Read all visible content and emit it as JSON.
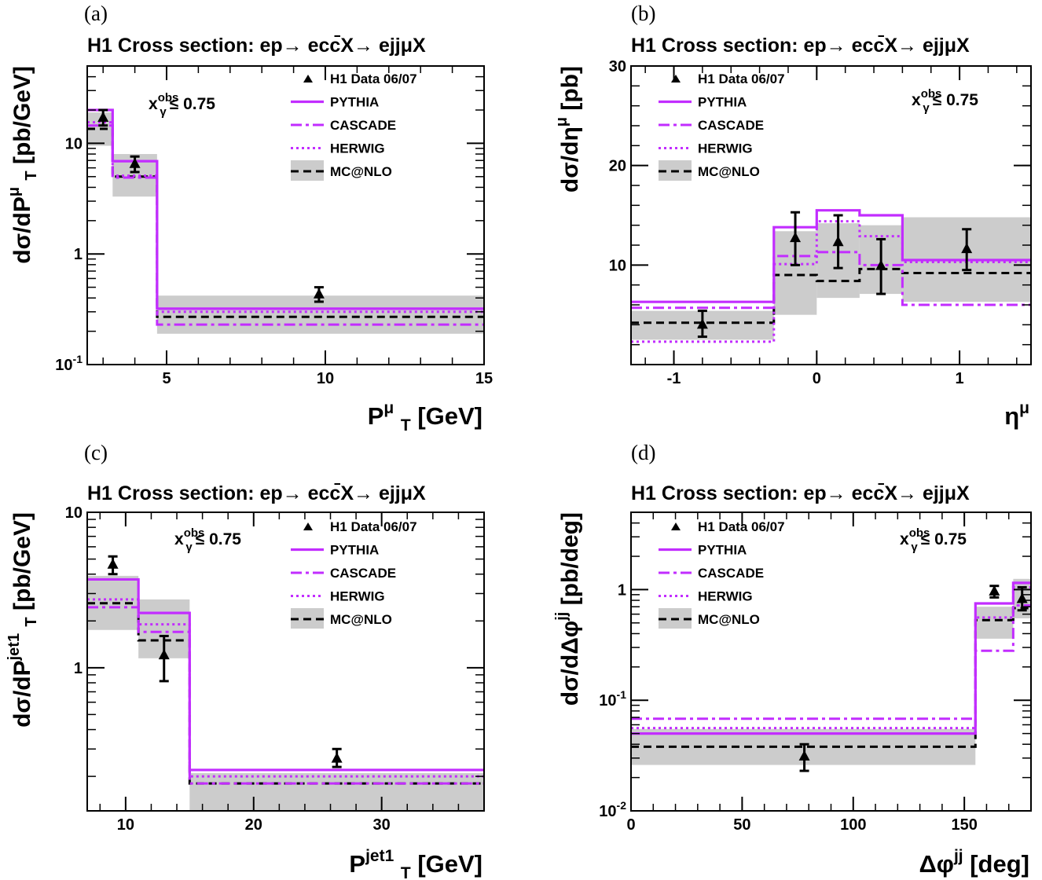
{
  "chart_data": [
    {
      "panel_label": "(a)",
      "type": "line",
      "title": "H1 Cross section: ep→ ecc̄X→ ejjμX",
      "xlabel": "P_T^μ [GeV]",
      "ylabel": "dσ/dP_T^μ [pb/GeV]",
      "xlim": [
        2.5,
        15
      ],
      "ylim": [
        0.1,
        50
      ],
      "ylog": true,
      "x_ticks": [
        "5",
        "10",
        "15"
      ],
      "y_ticks": [
        "10^-1",
        "1",
        "10"
      ],
      "cut_label": "xγ^obs ≤ 0.75",
      "legend_position": "top-right",
      "legend": [
        "H1 Data 06/07",
        "PYTHIA",
        "CASCADE",
        "HERWIG",
        "MC@NLO"
      ],
      "bin_edges": [
        2.5,
        3.3,
        4.7,
        15
      ],
      "data": {
        "x": [
          3.0,
          4.0,
          9.8
        ],
        "y": [
          17,
          6.5,
          0.43
        ],
        "err_up": [
          20,
          7.6,
          0.5
        ],
        "err_down": [
          14.5,
          5.5,
          0.37
        ]
      },
      "series": [
        {
          "name": "PYTHIA",
          "values": [
            20,
            6.9,
            0.32
          ]
        },
        {
          "name": "CASCADE",
          "values": [
            14.5,
            4.9,
            0.23
          ]
        },
        {
          "name": "HERWIG",
          "values": [
            15.5,
            5.1,
            0.3
          ]
        },
        {
          "name": "MC@NLO",
          "values": [
            13.5,
            5.0,
            0.27
          ]
        }
      ],
      "mcnlo_band": {
        "low": [
          9.5,
          3.3,
          0.19
        ],
        "high": [
          19,
          8.0,
          0.42
        ]
      }
    },
    {
      "panel_label": "(b)",
      "type": "line",
      "title": "H1 Cross section: ep→ ecc̄X→ ejjμX",
      "xlabel": "η^μ",
      "ylabel": "dσ/dη^μ [pb]",
      "xlim": [
        -1.3,
        1.5
      ],
      "ylim": [
        0,
        30
      ],
      "ylog": false,
      "x_ticks": [
        "-1",
        "0",
        "1"
      ],
      "y_ticks": [
        "10",
        "20",
        "30"
      ],
      "cut_label": "xγ^obs ≤ 0.75",
      "legend_position": "top-right",
      "legend": [
        "H1 Data 06/07",
        "PYTHIA",
        "CASCADE",
        "HERWIG",
        "MC@NLO"
      ],
      "bin_edges": [
        -1.3,
        -0.3,
        0,
        0.3,
        0.6,
        1.5
      ],
      "data": {
        "x": [
          -0.8,
          -0.15,
          0.15,
          0.45,
          1.05
        ],
        "y": [
          4.0,
          12.7,
          12.3,
          9.9,
          11.6
        ],
        "err_up": [
          5.4,
          15.3,
          15.0,
          12.6,
          13.6
        ],
        "err_down": [
          2.8,
          10.0,
          9.7,
          7.1,
          9.5
        ]
      },
      "series": [
        {
          "name": "PYTHIA",
          "values": [
            6.3,
            13.8,
            15.5,
            15.0,
            10.5
          ]
        },
        {
          "name": "CASCADE",
          "values": [
            5.7,
            10.9,
            11.3,
            10.0,
            6.0
          ]
        },
        {
          "name": "HERWIG",
          "values": [
            2.3,
            10.1,
            14.4,
            12.9,
            10.3
          ]
        },
        {
          "name": "MC@NLO",
          "values": [
            4.2,
            9.0,
            8.4,
            9.6,
            9.2
          ]
        }
      ],
      "mcnlo_band": {
        "low": [
          2.5,
          5.0,
          6.7,
          7.1,
          6.3
        ],
        "high": [
          5.4,
          13.4,
          14.2,
          14.0,
          14.8
        ]
      }
    },
    {
      "panel_label": "(c)",
      "type": "line",
      "title": "H1 Cross section: ep→ ecc̄X→ ejjμX",
      "xlabel": "P_T^jet1 [GeV]",
      "ylabel": "dσ/dP_T^jet1 [pb/GeV]",
      "xlim": [
        7,
        38
      ],
      "ylim": [
        0.12,
        10
      ],
      "ylog": true,
      "x_ticks": [
        "10",
        "20",
        "30"
      ],
      "y_ticks": [
        "1",
        "10"
      ],
      "cut_label": "xγ^obs ≤ 0.75",
      "legend_position": "top-right",
      "legend": [
        "H1 Data 06/07",
        "PYTHIA",
        "CASCADE",
        "HERWIG",
        "MC@NLO"
      ],
      "bin_edges": [
        7,
        11,
        15,
        38
      ],
      "data": {
        "x": [
          9.0,
          13.0,
          26.5
        ],
        "y": [
          4.6,
          1.2,
          0.26
        ],
        "err_up": [
          5.2,
          1.6,
          0.3
        ],
        "err_down": [
          4.0,
          0.82,
          0.23
        ]
      },
      "series": [
        {
          "name": "PYTHIA",
          "values": [
            3.7,
            2.25,
            0.22
          ]
        },
        {
          "name": "CASCADE",
          "values": [
            2.45,
            1.7,
            0.18
          ]
        },
        {
          "name": "HERWIG",
          "values": [
            2.75,
            1.9,
            0.2
          ]
        },
        {
          "name": "MC@NLO",
          "values": [
            2.6,
            1.5,
            0.18
          ]
        }
      ],
      "mcnlo_band": {
        "low": [
          1.75,
          1.15,
          0.12
        ],
        "high": [
          3.9,
          2.75,
          0.21
        ]
      }
    },
    {
      "panel_label": "(d)",
      "type": "line",
      "title": "H1 Cross section: ep→ ecc̄X→ ejjμX",
      "xlabel": "Δφ^jj [deg]",
      "ylabel": "dσ/dΔφ^jj [pb/deg]",
      "xlim": [
        0,
        180
      ],
      "ylim": [
        0.01,
        5
      ],
      "ylog": true,
      "x_ticks": [
        "0",
        "50",
        "100",
        "150"
      ],
      "y_ticks": [
        "10^-2",
        "10^-1",
        "1"
      ],
      "cut_label": "xγ^obs ≤ 0.75",
      "legend_position": "top-left",
      "legend": [
        "H1 Data 06/07",
        "PYTHIA",
        "CASCADE",
        "HERWIG",
        "MC@NLO"
      ],
      "bin_edges": [
        0,
        155,
        172,
        180
      ],
      "data": {
        "x": [
          78,
          163.5,
          176
        ],
        "y": [
          0.031,
          0.96,
          0.82
        ],
        "err_up": [
          0.04,
          1.08,
          1.05
        ],
        "err_down": [
          0.023,
          0.85,
          0.65
        ]
      },
      "series": [
        {
          "name": "PYTHIA",
          "values": [
            0.05,
            0.75,
            1.15
          ]
        },
        {
          "name": "CASCADE",
          "values": [
            0.068,
            0.28,
            0.72
          ]
        },
        {
          "name": "HERWIG",
          "values": [
            0.056,
            0.56,
            1.05
          ]
        },
        {
          "name": "MC@NLO",
          "values": [
            0.038,
            0.53,
            0.68
          ]
        }
      ],
      "mcnlo_band": {
        "low": [
          0.026,
          0.36,
          0.55
        ],
        "high": [
          0.055,
          0.7,
          1.25
        ]
      }
    }
  ],
  "colors": {
    "pythia": "#c22dff",
    "cascade": "#c22dff",
    "herwig": "#c22dff",
    "mcnlo": "#000000",
    "band": "#cccccc",
    "data": "#000000"
  }
}
